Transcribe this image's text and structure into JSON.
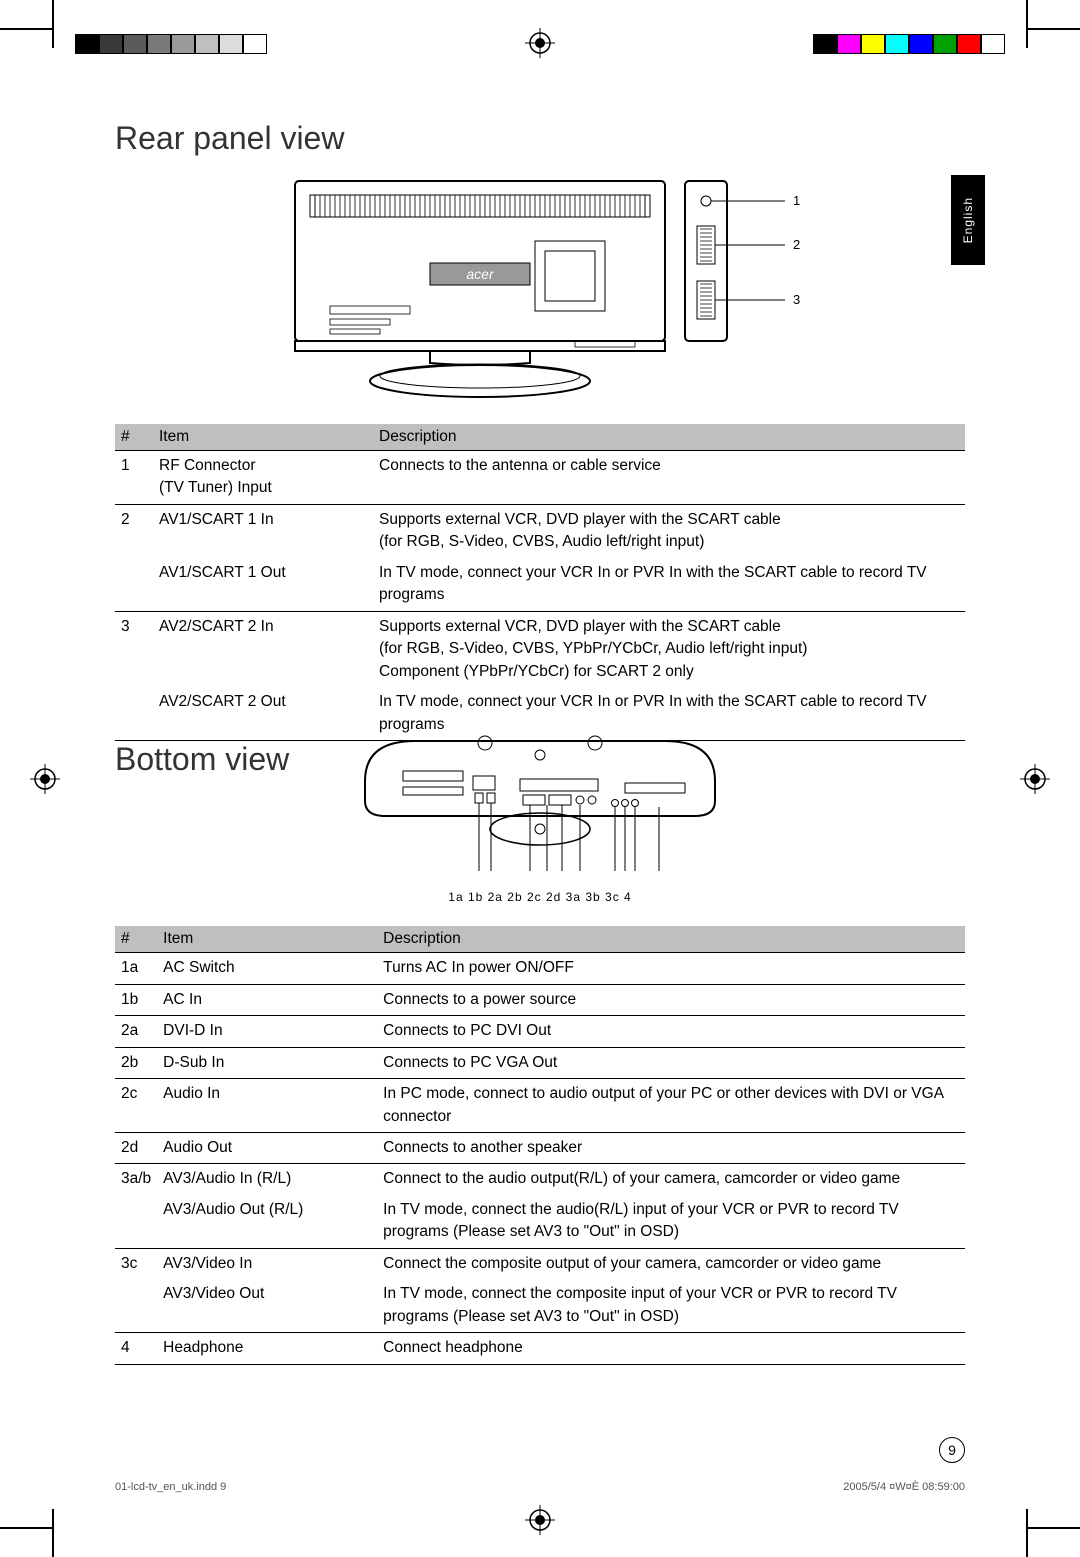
{
  "language_tab": "English",
  "page_number": "9",
  "footer_left": "01-lcd-tv_en_uk.indd   9",
  "footer_right": "2005/5/4   ¤W¤È 08:59:00",
  "colorbar_left": [
    "#000000",
    "#3a3a3a",
    "#5a5a5a",
    "#7a7a7a",
    "#9a9a9a",
    "#bfbfbf",
    "#dcdcdc",
    "#ffffff"
  ],
  "colorbar_right": [
    "#000000",
    "#ff00ff",
    "#ffff00",
    "#00ffff",
    "#0000ff",
    "#00a000",
    "#ff0000",
    "#ffffff"
  ],
  "rear": {
    "heading": "Rear panel view",
    "callouts": [
      "1",
      "2",
      "3"
    ],
    "brand_text": "acer",
    "table": {
      "headers": [
        "#",
        "Item",
        "Description"
      ],
      "rows": [
        {
          "n": "1",
          "item": "RF Connector\n(TV Tuner) Input",
          "desc": "Connects to the antenna or cable service",
          "sep": true
        },
        {
          "n": "2",
          "item": "AV1/SCART 1 In",
          "desc": "Supports external VCR, DVD player with the SCART cable\n(for RGB, S-Video, CVBS, Audio left/right input)",
          "sep": false
        },
        {
          "n": "",
          "item": "AV1/SCART 1 Out",
          "desc": "In TV mode, connect your VCR In or PVR In with the SCART cable to record TV programs",
          "sep": true
        },
        {
          "n": "3",
          "item": "AV2/SCART 2 In",
          "desc": "Supports external VCR, DVD player with the SCART cable\n(for RGB, S-Video, CVBS, YPbPr/YCbCr, Audio left/right input)\nComponent (YPbPr/YCbCr) for SCART 2 only",
          "sep": false
        },
        {
          "n": "",
          "item": "AV2/SCART 2 Out",
          "desc": "In TV mode, connect your VCR In or PVR In with the SCART cable to record TV programs",
          "sep": true
        }
      ]
    }
  },
  "bottom": {
    "heading": "Bottom view",
    "labels": "1a 1b        2a  2b 2c  2d   3a  3b 3c    4",
    "table": {
      "headers": [
        "#",
        "Item",
        "Description"
      ],
      "rows": [
        {
          "n": "1a",
          "item": "AC Switch",
          "desc": "Turns AC In power ON/OFF",
          "sep": true
        },
        {
          "n": "1b",
          "item": "AC In",
          "desc": "Connects to a power source",
          "sep": true
        },
        {
          "n": "2a",
          "item": "DVI-D In",
          "desc": "Connects to PC DVI Out",
          "sep": true
        },
        {
          "n": "2b",
          "item": "D-Sub In",
          "desc": "Connects to PC VGA Out",
          "sep": true
        },
        {
          "n": "2c",
          "item": "Audio In",
          "desc": "In PC mode, connect to audio output of your PC or other devices with DVI or VGA connector",
          "sep": true
        },
        {
          "n": "2d",
          "item": "Audio Out",
          "desc": "Connects to another speaker",
          "sep": true
        },
        {
          "n": "3a/b",
          "item": "AV3/Audio In (R/L)",
          "desc": "Connect to the audio output(R/L) of your camera, camcorder or video game",
          "sep": false
        },
        {
          "n": "",
          "item": "AV3/Audio Out (R/L)",
          "desc": "In TV mode, connect the audio(R/L)  input of your VCR or PVR to record TV programs (Please set AV3 to \"Out\" in OSD)",
          "sep": true
        },
        {
          "n": "3c",
          "item": "AV3/Video In",
          "desc": "Connect the composite output of your camera, camcorder or video game",
          "sep": false
        },
        {
          "n": "",
          "item": "AV3/Video Out",
          "desc": "In TV mode, connect the composite input of your VCR or PVR to record TV programs (Please set AV3 to \"Out\" in OSD)",
          "sep": true
        },
        {
          "n": "4",
          "item": "Headphone",
          "desc": "Connect headphone",
          "sep": true
        }
      ]
    }
  }
}
